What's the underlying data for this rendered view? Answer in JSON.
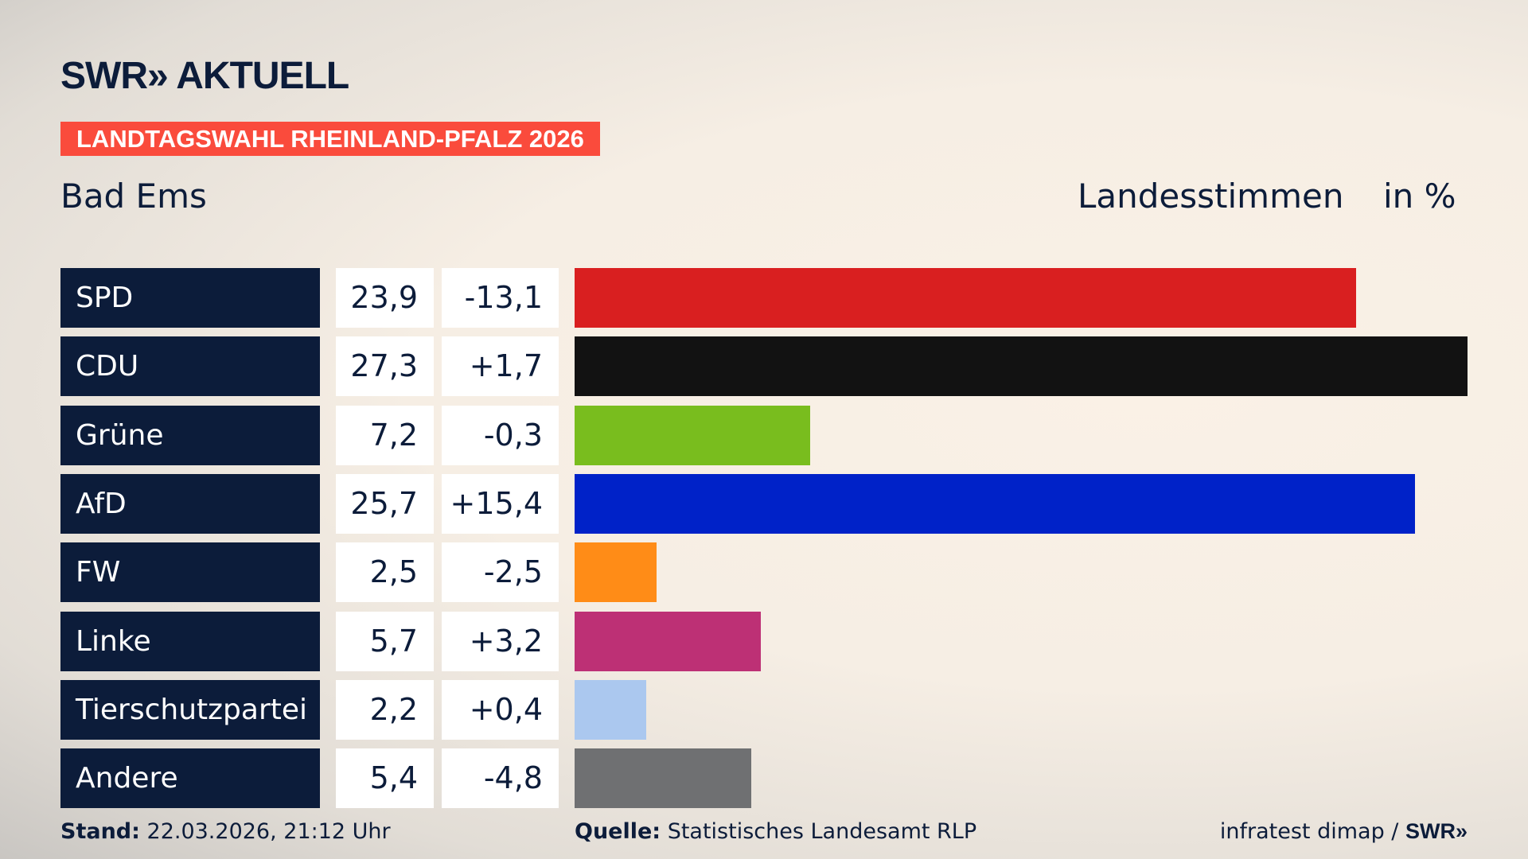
{
  "header": {
    "logo": "SWR» AKTUELL",
    "banner": "LANDTAGSWAHL RHEINLAND-PFALZ 2026",
    "region": "Bad Ems",
    "measure": "Landesstimmen",
    "unit": "in %"
  },
  "chart_data": {
    "type": "bar",
    "orientation": "horizontal",
    "categories": [
      "SPD",
      "CDU",
      "Grüne",
      "AfD",
      "FW",
      "Linke",
      "Tierschutzpartei",
      "Andere"
    ],
    "values": [
      23.9,
      27.3,
      7.2,
      25.7,
      2.5,
      5.7,
      2.2,
      5.4
    ],
    "values_label": [
      "23,9",
      "27,3",
      "7,2",
      "25,7",
      "2,5",
      "5,7",
      "2,2",
      "5,4"
    ],
    "diff_label": [
      "-13,1",
      "+1,7",
      "-0,3",
      "+15,4",
      "-2,5",
      "+3,2",
      "+0,4",
      "-4,8"
    ],
    "colors": [
      "#d91f20",
      "#121212",
      "#79bd1e",
      "#0022c8",
      "#ff8c17",
      "#bd3075",
      "#abc8ef",
      "#6f7072"
    ],
    "xlim": [
      0,
      27.3
    ]
  },
  "footer": {
    "stand_label": "Stand:",
    "stand": "22.03.2026, 21:12 Uhr",
    "source_label": "Quelle:",
    "source": "Statistisches Landesamt RLP",
    "credit": "infratest dimap / ",
    "credit_logo": "SWR»"
  }
}
